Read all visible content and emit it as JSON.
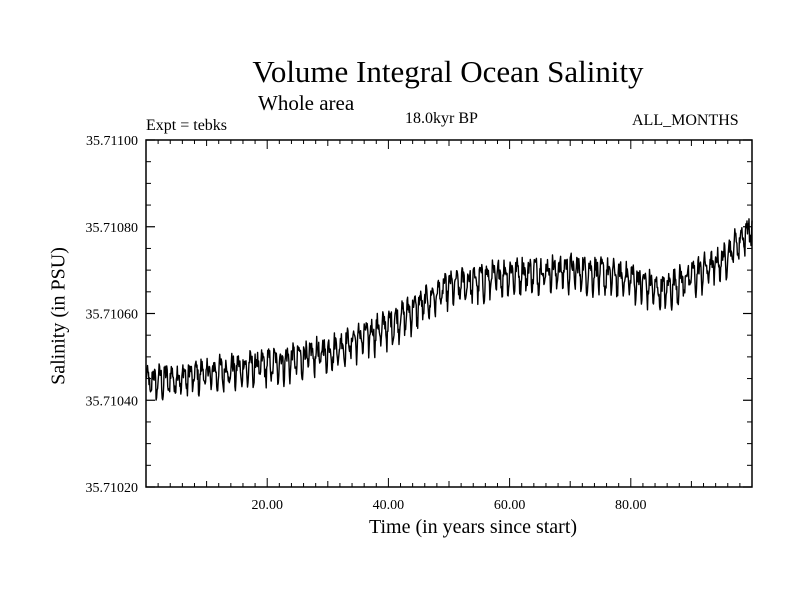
{
  "chart_data": {
    "type": "line",
    "title": "Volume Integral Ocean Salinity",
    "subtitle": "Whole area",
    "annotations": {
      "experiment": "Expt = tebks",
      "period": "18.0kyr BP",
      "months": "ALL_MONTHS"
    },
    "xlabel": "Time (in years since start)",
    "ylabel": "Salinity (in PSU)",
    "xlim": [
      0,
      100
    ],
    "ylim": [
      35.7102,
      35.711
    ],
    "x_ticks": [
      20,
      40,
      60,
      80
    ],
    "x_tick_labels": [
      "20.00",
      "40.00",
      "60.00",
      "80.00"
    ],
    "y_ticks": [
      35.7102,
      35.7104,
      35.7106,
      35.7108,
      35.711
    ],
    "y_tick_labels": [
      "35.71020",
      "35.71040",
      "35.71060",
      "35.71080",
      "35.71100"
    ],
    "grid": false,
    "series": [
      {
        "name": "salinity",
        "description": "monthly values with strong seasonal oscillation",
        "trend_x": [
          0,
          10,
          20,
          30,
          40,
          50,
          60,
          70,
          80,
          85,
          95,
          100
        ],
        "trend_y": [
          35.71044,
          35.71046,
          35.71048,
          35.71051,
          35.71057,
          35.71066,
          35.71069,
          35.7107,
          35.71068,
          35.71065,
          35.71072,
          35.7108
        ],
        "oscillation_amplitude": 7e-05
      }
    ]
  }
}
